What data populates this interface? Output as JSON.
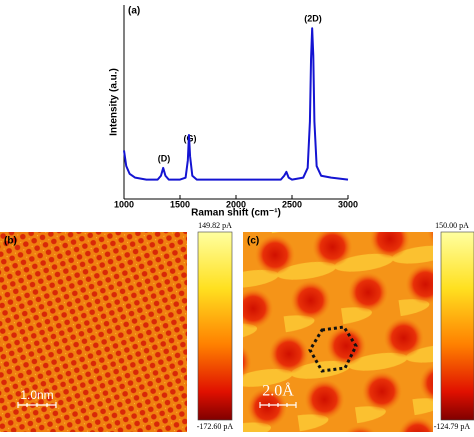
{
  "chart_data": {
    "type": "line",
    "title": "(a)",
    "x_label": "Raman shift (cm⁻¹)",
    "y_label": "Intensity (a.u.)",
    "annotations": [
      "(D)",
      "(G)",
      "(2D)"
    ],
    "x": [
      1000,
      1020,
      1050,
      1100,
      1200,
      1300,
      1330,
      1350,
      1370,
      1400,
      1500,
      1550,
      1570,
      1580,
      1590,
      1610,
      1650,
      1800,
      2000,
      2200,
      2400,
      2430,
      2450,
      2470,
      2500,
      2600,
      2640,
      2660,
      2670,
      2680,
      2690,
      2700,
      2720,
      2760,
      2850,
      3000
    ],
    "series": [
      {
        "color": "#1414d2",
        "values": [
          25,
          17,
          13,
          11,
          10,
          10,
          12,
          16,
          12,
          10,
          10,
          11,
          20,
          33,
          22,
          12,
          10,
          10,
          10,
          10,
          10,
          12,
          14,
          11,
          10,
          11,
          16,
          40,
          72,
          88,
          74,
          40,
          17,
          12,
          11,
          10
        ]
      }
    ],
    "xlim": [
      1000,
      3000
    ],
    "xticks": [
      1000,
      1500,
      2000,
      2500,
      3000
    ],
    "ylim": [
      0,
      100
    ]
  },
  "panels": [
    {
      "label": "(b)",
      "scale_bar": "1.0nm",
      "colorbar_max": "149.82 pA",
      "colorbar_min": "-172.60 pA"
    },
    {
      "label": "(c)",
      "scale_bar": "2.0Å",
      "colorbar_max": "150.00 pA",
      "colorbar_min": "-124.79 pA"
    }
  ]
}
